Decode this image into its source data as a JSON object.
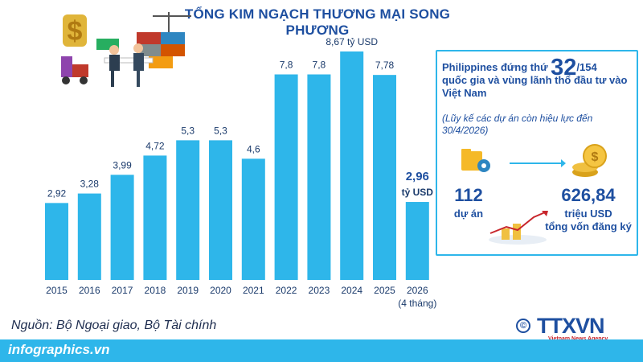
{
  "title": "TỔNG KIM NGẠCH THƯƠNG MẠI SONG PHƯƠNG",
  "chart_data": {
    "type": "bar",
    "categories": [
      "2015",
      "2016",
      "2017",
      "2018",
      "2019",
      "2020",
      "2021",
      "2022",
      "2023",
      "2024",
      "2025",
      "2026"
    ],
    "category_notes": {
      "2026": "(4 tháng)"
    },
    "values": [
      2.92,
      3.28,
      3.99,
      4.72,
      5.3,
      5.3,
      4.6,
      7.8,
      7.8,
      8.67,
      7.78,
      2.96
    ],
    "value_labels": [
      "2,92",
      "3,28",
      "3,99",
      "4,72",
      "5,3",
      "5,3",
      "4,6",
      "7,8",
      "7,8",
      "8,67 tỷ USD",
      "7,78",
      "2,96"
    ],
    "last_unit_label": "tỷ USD",
    "ylim": [
      0,
      8.67
    ],
    "bar_color": "#2eb6ea"
  },
  "panel": {
    "head_prefix": "Philippines đứng thứ ",
    "rank": "32",
    "rank_total": "/154",
    "head_rest": "quốc gia và vùng lãnh thổ đầu tư vào Việt Nam",
    "sub": "(Lũy kế các dự án còn hiệu lực đến 30/4/2026)",
    "projects_value": "112",
    "projects_label": "dự án",
    "capital_value": "626,84",
    "capital_label_1": "triệu USD",
    "capital_label_2": "tổng vốn đăng ký",
    "icons": [
      "folder-gear-icon",
      "coin-stack-icon",
      "growth-chart-icon"
    ]
  },
  "source": "Nguồn: Bộ Ngoại giao, Bộ Tài chính",
  "site": "infographics.vn",
  "logo": {
    "main": "TTXVN",
    "sub": "Vietnam News Agency",
    "copyright": "©"
  },
  "colors": {
    "accent": "#2eb6ea",
    "title": "#1e4fa0",
    "logo_sub": "#c8262c"
  }
}
